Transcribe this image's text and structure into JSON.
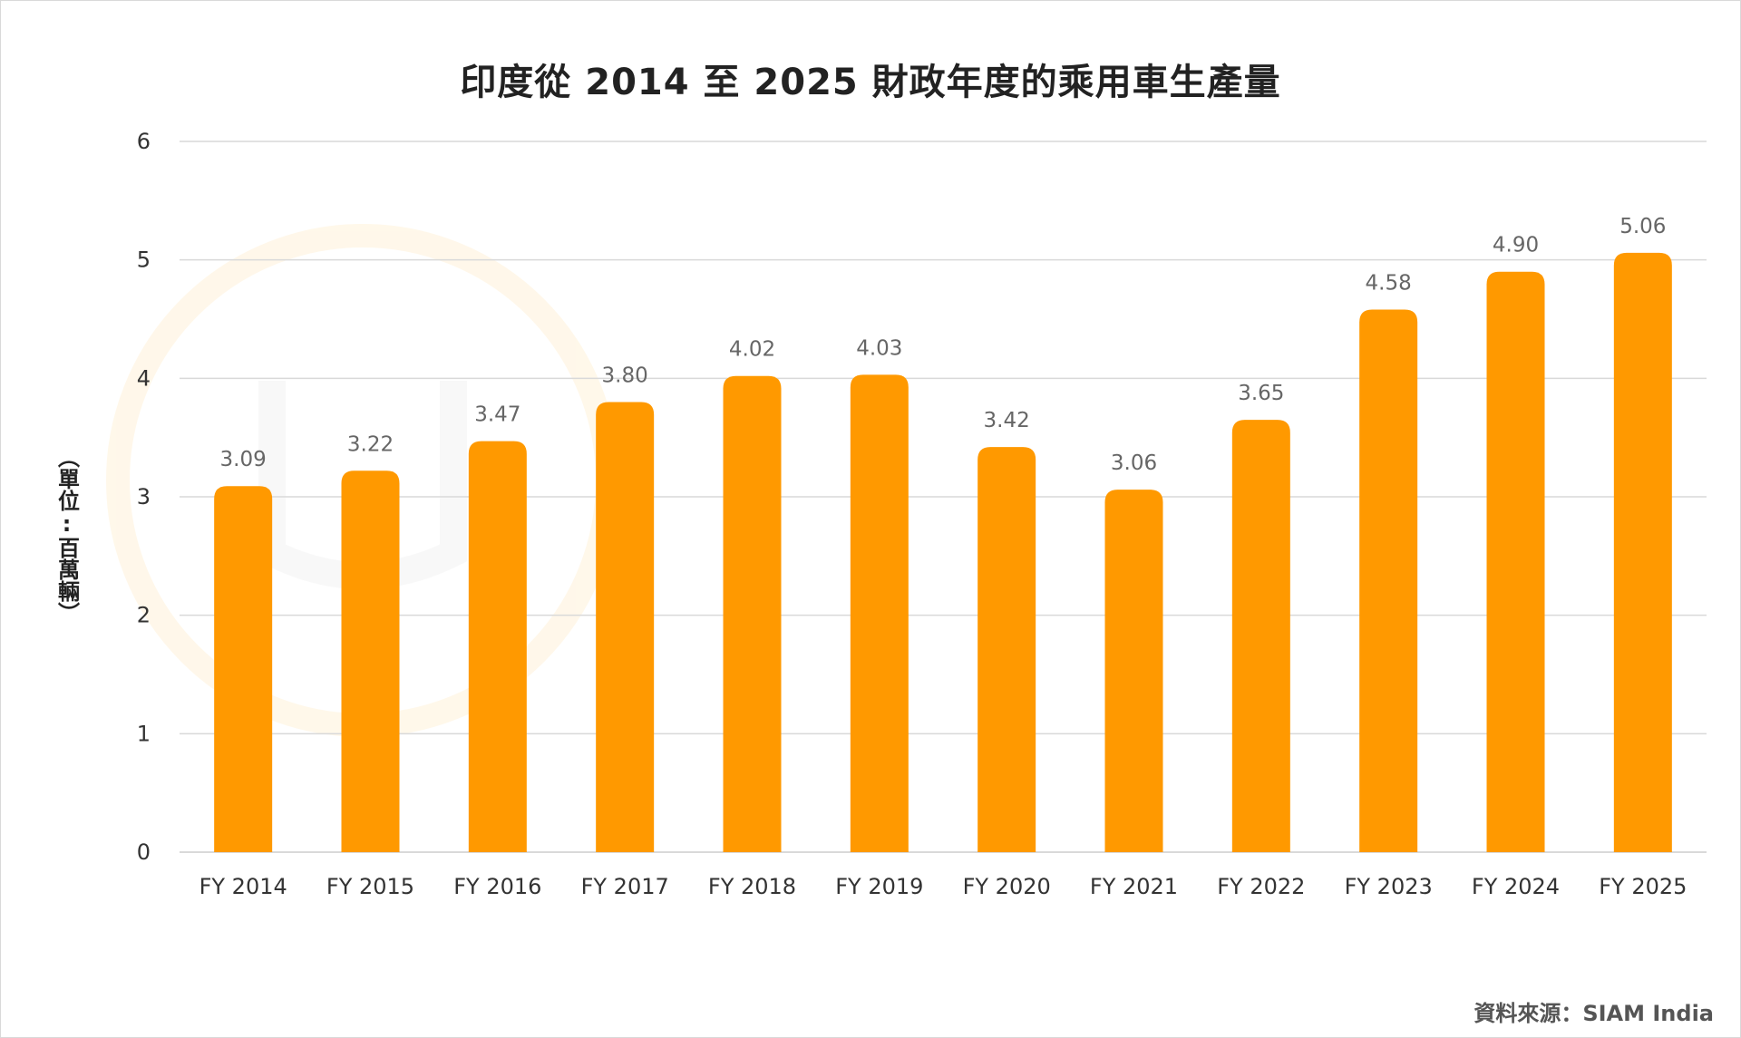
{
  "chart_data": {
    "type": "bar",
    "title": "印度從 2014 至 2025 財政年度的乘用車生產量",
    "ylabel": "（單位:百萬輛）",
    "xlabel": "",
    "categories": [
      "FY 2014",
      "FY 2015",
      "FY 2016",
      "FY 2017",
      "FY 2018",
      "FY 2019",
      "FY 2020",
      "FY 2021",
      "FY 2022",
      "FY 2023",
      "FY 2024",
      "FY 2025"
    ],
    "values": [
      3.09,
      3.22,
      3.47,
      3.8,
      4.02,
      4.03,
      3.42,
      3.06,
      3.65,
      4.58,
      4.9,
      5.06
    ],
    "data_labels": [
      "3.09",
      "3.22",
      "3.47",
      "3.80",
      "4.02",
      "4.03",
      "3.42",
      "3.06",
      "3.65",
      "4.58",
      "4.90",
      "5.06"
    ],
    "yticks": [
      "0",
      "1",
      "2",
      "3",
      "4",
      "5",
      "6"
    ],
    "ylim": [
      0,
      6
    ],
    "grid": true,
    "legend": "none",
    "bar_color": "#FF9900",
    "grid_color": "#D9D9D9"
  },
  "source": "資料來源：SIAM India"
}
